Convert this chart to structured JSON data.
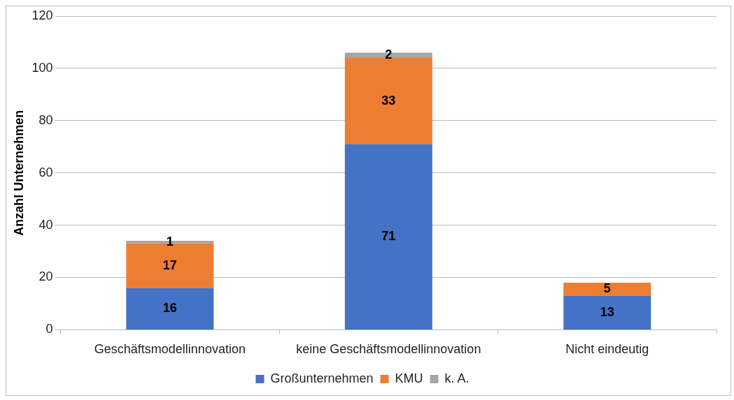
{
  "chart_data": {
    "type": "bar",
    "stacked": true,
    "ylabel": "Anzahl Unternehmen",
    "categories": [
      "Geschäftsmodellinnovation",
      "keine Geschäftsmodellinnovation",
      "Nicht eindeutig"
    ],
    "series": [
      {
        "name": "Großunternehmen",
        "color": "#4472c4",
        "values": [
          16,
          71,
          13
        ]
      },
      {
        "name": "KMU",
        "color": "#ed7d31",
        "values": [
          17,
          33,
          5
        ]
      },
      {
        "name": "k. A.",
        "color": "#a5a5a5",
        "values": [
          1,
          2,
          null
        ]
      }
    ],
    "ylim": [
      0,
      120
    ],
    "yticks": [
      0,
      20,
      40,
      60,
      80,
      100,
      120
    ],
    "grid": "y",
    "legend": "bottom",
    "data_labels": true
  }
}
